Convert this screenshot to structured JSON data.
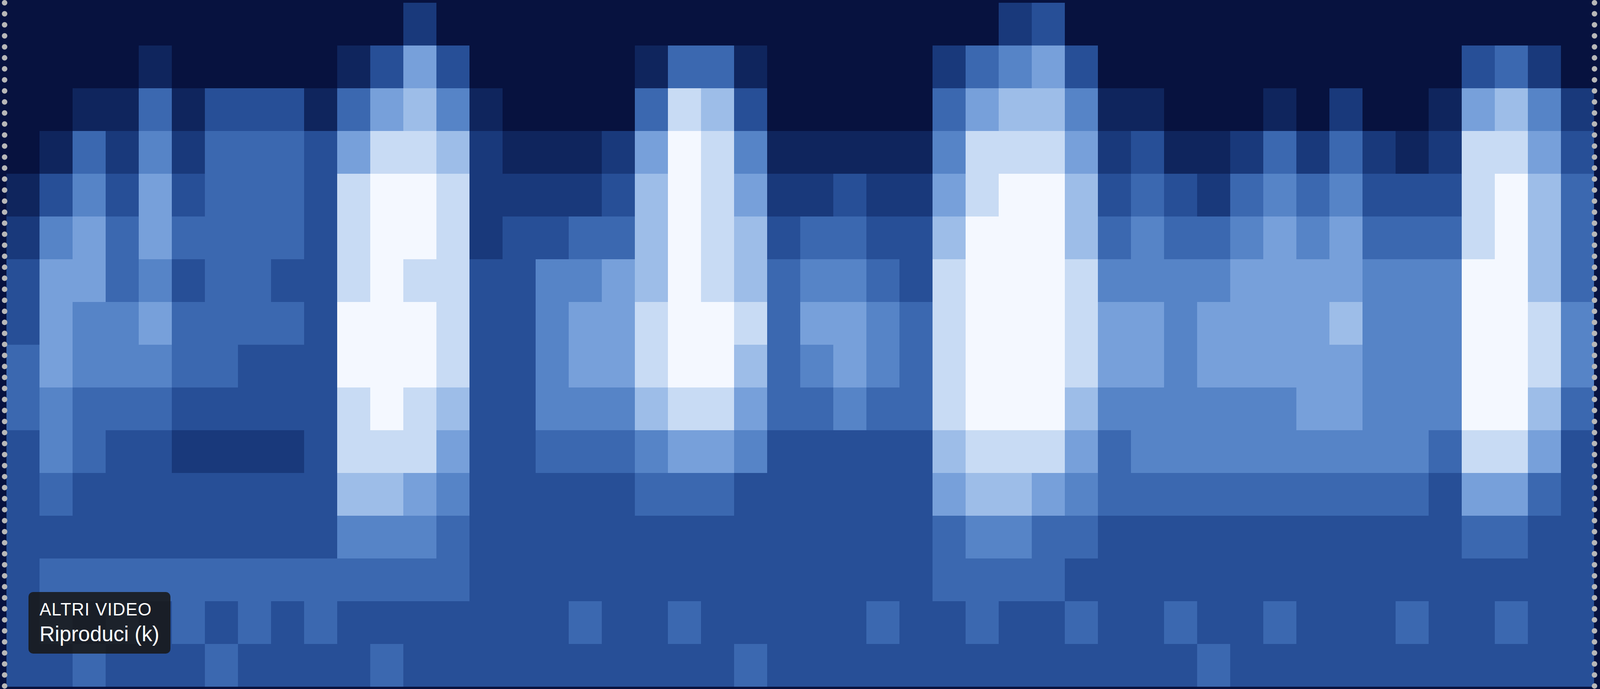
{
  "chart_data": {
    "type": "heatmap",
    "cells": [
      [
        0,
        0,
        0,
        0,
        0,
        0,
        0,
        0,
        0,
        0,
        0,
        0,
        2,
        0,
        0,
        0,
        0,
        0,
        0,
        0,
        0,
        0,
        0,
        0,
        0,
        0,
        0,
        0,
        0,
        0,
        2,
        3,
        0,
        0,
        0,
        0,
        0,
        0,
        0,
        0,
        0,
        0,
        0,
        0,
        0,
        0,
        0,
        0
      ],
      [
        0,
        0,
        0,
        0,
        1,
        0,
        0,
        0,
        0,
        0,
        1,
        3,
        6,
        3,
        0,
        0,
        0,
        0,
        0,
        1,
        4,
        4,
        1,
        0,
        0,
        0,
        0,
        0,
        2,
        4,
        5,
        6,
        3,
        0,
        0,
        0,
        0,
        0,
        0,
        0,
        0,
        0,
        0,
        0,
        3,
        4,
        2,
        0
      ],
      [
        0,
        0,
        1,
        1,
        4,
        1,
        3,
        3,
        3,
        1,
        4,
        6,
        7,
        5,
        1,
        0,
        0,
        0,
        0,
        4,
        8,
        7,
        3,
        0,
        0,
        0,
        0,
        0,
        4,
        6,
        7,
        7,
        5,
        1,
        1,
        0,
        0,
        0,
        1,
        0,
        2,
        0,
        0,
        1,
        6,
        7,
        5,
        2
      ],
      [
        0,
        1,
        4,
        2,
        5,
        2,
        4,
        4,
        4,
        3,
        6,
        8,
        8,
        7,
        2,
        1,
        1,
        1,
        2,
        6,
        9,
        8,
        5,
        1,
        1,
        1,
        1,
        1,
        5,
        8,
        8,
        8,
        6,
        2,
        3,
        1,
        1,
        2,
        4,
        2,
        4,
        2,
        1,
        2,
        8,
        8,
        6,
        3
      ],
      [
        1,
        3,
        5,
        3,
        6,
        3,
        4,
        4,
        4,
        3,
        8,
        9,
        9,
        8,
        2,
        2,
        2,
        2,
        3,
        7,
        9,
        8,
        6,
        2,
        2,
        3,
        2,
        2,
        6,
        8,
        9,
        9,
        7,
        3,
        4,
        3,
        2,
        4,
        5,
        4,
        5,
        3,
        3,
        3,
        8,
        9,
        7,
        4
      ],
      [
        2,
        5,
        6,
        4,
        6,
        4,
        4,
        4,
        4,
        3,
        8,
        9,
        9,
        8,
        2,
        3,
        3,
        4,
        4,
        7,
        9,
        8,
        7,
        3,
        4,
        4,
        3,
        3,
        7,
        9,
        9,
        9,
        7,
        4,
        5,
        4,
        4,
        5,
        6,
        5,
        6,
        4,
        4,
        4,
        8,
        9,
        7,
        4
      ],
      [
        3,
        6,
        6,
        4,
        5,
        3,
        4,
        4,
        3,
        3,
        8,
        9,
        8,
        8,
        3,
        3,
        5,
        5,
        6,
        7,
        9,
        8,
        7,
        4,
        5,
        5,
        4,
        3,
        8,
        9,
        9,
        9,
        8,
        5,
        5,
        5,
        5,
        6,
        6,
        6,
        6,
        5,
        5,
        5,
        9,
        9,
        7,
        4
      ],
      [
        3,
        6,
        5,
        5,
        6,
        4,
        4,
        4,
        4,
        3,
        9,
        9,
        9,
        8,
        3,
        3,
        5,
        6,
        6,
        8,
        9,
        9,
        8,
        4,
        6,
        6,
        5,
        4,
        8,
        9,
        9,
        9,
        8,
        6,
        6,
        5,
        6,
        6,
        6,
        6,
        7,
        5,
        5,
        5,
        9,
        9,
        8,
        5
      ],
      [
        4,
        6,
        5,
        5,
        5,
        4,
        4,
        3,
        3,
        3,
        9,
        9,
        9,
        8,
        3,
        3,
        5,
        6,
        6,
        8,
        9,
        9,
        7,
        4,
        5,
        6,
        5,
        4,
        8,
        9,
        9,
        9,
        8,
        6,
        6,
        5,
        6,
        6,
        6,
        6,
        6,
        5,
        5,
        5,
        9,
        9,
        8,
        5
      ],
      [
        4,
        5,
        4,
        4,
        4,
        3,
        3,
        3,
        3,
        3,
        8,
        9,
        8,
        7,
        3,
        3,
        5,
        5,
        5,
        7,
        8,
        8,
        6,
        4,
        4,
        5,
        4,
        4,
        8,
        9,
        9,
        9,
        7,
        5,
        5,
        5,
        5,
        5,
        5,
        6,
        6,
        5,
        5,
        5,
        9,
        9,
        7,
        4
      ],
      [
        3,
        5,
        4,
        3,
        3,
        2,
        2,
        2,
        2,
        3,
        8,
        8,
        8,
        6,
        3,
        3,
        4,
        4,
        4,
        5,
        6,
        6,
        5,
        3,
        3,
        3,
        3,
        3,
        7,
        8,
        8,
        8,
        6,
        4,
        5,
        5,
        5,
        5,
        5,
        5,
        5,
        5,
        5,
        4,
        8,
        8,
        6,
        3
      ],
      [
        3,
        4,
        3,
        3,
        3,
        3,
        3,
        3,
        3,
        3,
        7,
        7,
        6,
        5,
        3,
        3,
        3,
        3,
        3,
        4,
        4,
        4,
        3,
        3,
        3,
        3,
        3,
        3,
        6,
        7,
        7,
        6,
        5,
        4,
        4,
        4,
        4,
        4,
        4,
        4,
        4,
        4,
        4,
        3,
        6,
        6,
        4,
        3
      ],
      [
        3,
        3,
        3,
        3,
        3,
        3,
        3,
        3,
        3,
        3,
        5,
        5,
        5,
        4,
        3,
        3,
        3,
        3,
        3,
        3,
        3,
        3,
        3,
        3,
        3,
        3,
        3,
        3,
        4,
        5,
        5,
        4,
        4,
        3,
        3,
        3,
        3,
        3,
        3,
        3,
        3,
        3,
        3,
        3,
        4,
        4,
        3,
        3
      ],
      [
        3,
        4,
        4,
        4,
        4,
        4,
        4,
        4,
        4,
        4,
        4,
        4,
        4,
        4,
        3,
        3,
        3,
        3,
        3,
        3,
        3,
        3,
        3,
        3,
        3,
        3,
        3,
        3,
        4,
        4,
        4,
        4,
        3,
        3,
        3,
        3,
        3,
        3,
        3,
        3,
        3,
        3,
        3,
        3,
        3,
        3,
        3,
        3
      ],
      [
        3,
        4,
        3,
        4,
        3,
        4,
        3,
        4,
        3,
        4,
        3,
        3,
        3,
        3,
        3,
        3,
        3,
        4,
        3,
        3,
        4,
        3,
        3,
        3,
        3,
        3,
        4,
        3,
        3,
        4,
        3,
        3,
        4,
        3,
        3,
        4,
        3,
        3,
        4,
        3,
        3,
        3,
        4,
        3,
        3,
        4,
        3,
        3
      ],
      [
        3,
        3,
        4,
        3,
        3,
        3,
        4,
        3,
        3,
        3,
        3,
        4,
        3,
        3,
        3,
        3,
        3,
        3,
        3,
        3,
        3,
        3,
        4,
        3,
        3,
        3,
        3,
        3,
        3,
        3,
        3,
        3,
        3,
        3,
        3,
        3,
        4,
        3,
        3,
        3,
        3,
        3,
        3,
        3,
        3,
        3,
        3,
        3
      ]
    ],
    "zlim": [
      0,
      9
    ],
    "tick_labels": false,
    "annotations": [
      "ALTRI VIDEO",
      "Riproduci (k)"
    ]
  }
}
